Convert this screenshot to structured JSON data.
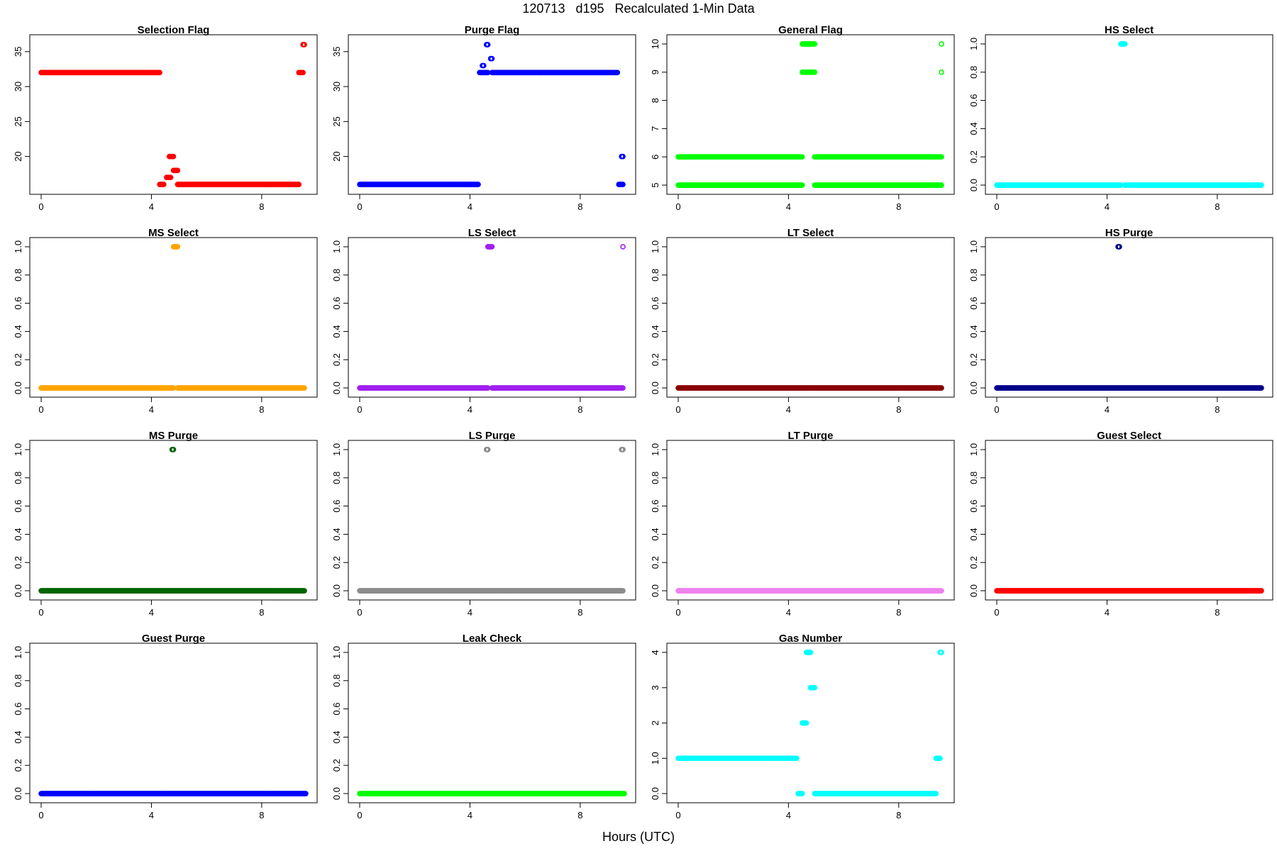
{
  "page": {
    "title": "120713   d195   Recalculated 1-Min Data",
    "xlabel": "Hours (UTC)"
  },
  "chart_data": [
    {
      "type": "scatter",
      "title": "Selection Flag",
      "color": "#ff0000",
      "xlim": [
        0,
        9.6
      ],
      "ylim": [
        15.5,
        36.5
      ],
      "xticks": [
        0,
        4,
        8
      ],
      "yticks": [
        20,
        25,
        30,
        35
      ],
      "segments": [
        {
          "y": 32,
          "x": [
            0,
            4.3
          ]
        },
        {
          "y": 16,
          "x": [
            4.3,
            4.45
          ]
        },
        {
          "y": 17,
          "x": [
            4.55,
            4.7
          ]
        },
        {
          "y": 20,
          "x": [
            4.65,
            4.8
          ]
        },
        {
          "y": 18,
          "x": [
            4.8,
            4.95
          ]
        },
        {
          "y": 16,
          "x": [
            4.95,
            9.35
          ]
        },
        {
          "y": 32,
          "x": [
            9.35,
            9.5
          ]
        },
        {
          "y": 36,
          "x": [
            9.5,
            9.55
          ]
        }
      ]
    },
    {
      "type": "scatter",
      "title": "Purge Flag",
      "color": "#0000ff",
      "xlim": [
        0,
        9.6
      ],
      "ylim": [
        15.5,
        36.5
      ],
      "xticks": [
        0,
        4,
        8
      ],
      "yticks": [
        20,
        25,
        30,
        35
      ],
      "segments": [
        {
          "y": 16,
          "x": [
            0,
            4.3
          ]
        },
        {
          "y": 32,
          "x": [
            4.35,
            4.65
          ]
        },
        {
          "y": 33,
          "x": [
            4.45,
            4.5
          ]
        },
        {
          "y": 36,
          "x": [
            4.6,
            4.65
          ]
        },
        {
          "y": 34,
          "x": [
            4.75,
            4.8
          ]
        },
        {
          "y": 32,
          "x": [
            4.8,
            9.35
          ]
        },
        {
          "y": 16,
          "x": [
            9.4,
            9.55
          ]
        },
        {
          "y": 20,
          "x": [
            9.5,
            9.55
          ]
        }
      ]
    },
    {
      "type": "scatter",
      "title": "General Flag",
      "color": "#00ff00",
      "xlim": [
        0,
        9.6
      ],
      "ylim": [
        4.9,
        10.1
      ],
      "xticks": [
        0,
        4,
        8
      ],
      "yticks": [
        5,
        6,
        7,
        8,
        9,
        10
      ],
      "segments": [
        {
          "y": 5,
          "x": [
            0,
            4.5
          ]
        },
        {
          "y": 6,
          "x": [
            0,
            4.5
          ]
        },
        {
          "y": 9,
          "x": [
            4.5,
            4.95
          ]
        },
        {
          "y": 10,
          "x": [
            4.5,
            4.95
          ]
        },
        {
          "y": 5,
          "x": [
            4.95,
            9.55
          ]
        },
        {
          "y": 6,
          "x": [
            4.95,
            9.55
          ]
        },
        {
          "y": 9,
          "x": [
            9.55,
            9.55
          ]
        },
        {
          "y": 10,
          "x": [
            9.55,
            9.55
          ]
        }
      ]
    },
    {
      "type": "scatter",
      "title": "HS Select",
      "color": "#00ffff",
      "xlim": [
        0,
        9.6
      ],
      "ylim": [
        -0.02,
        1.02
      ],
      "xticks": [
        0,
        4,
        8
      ],
      "yticks": [
        0,
        0.2,
        0.4,
        0.6,
        0.8,
        1
      ],
      "segments": [
        {
          "y": 0,
          "x": [
            0,
            4.5
          ]
        },
        {
          "y": 1,
          "x": [
            4.5,
            4.65
          ]
        },
        {
          "y": 0,
          "x": [
            4.65,
            9.6
          ]
        }
      ]
    },
    {
      "type": "scatter",
      "title": "MS Select",
      "color": "#ffa500",
      "xlim": [
        0,
        9.6
      ],
      "ylim": [
        -0.02,
        1.02
      ],
      "xticks": [
        0,
        4,
        8
      ],
      "yticks": [
        0,
        0.2,
        0.4,
        0.6,
        0.8,
        1
      ],
      "segments": [
        {
          "y": 0,
          "x": [
            0,
            4.8
          ]
        },
        {
          "y": 1,
          "x": [
            4.8,
            4.95
          ]
        },
        {
          "y": 0,
          "x": [
            4.95,
            9.55
          ]
        }
      ]
    },
    {
      "type": "scatter",
      "title": "LS Select",
      "color": "#a020f0",
      "xlim": [
        0,
        9.6
      ],
      "ylim": [
        -0.02,
        1.02
      ],
      "xticks": [
        0,
        4,
        8
      ],
      "yticks": [
        0,
        0.2,
        0.4,
        0.6,
        0.8,
        1
      ],
      "segments": [
        {
          "y": 0,
          "x": [
            0,
            4.65
          ]
        },
        {
          "y": 1,
          "x": [
            4.65,
            4.8
          ]
        },
        {
          "y": 0,
          "x": [
            4.8,
            9.55
          ]
        },
        {
          "y": 1,
          "x": [
            9.55,
            9.55
          ]
        }
      ]
    },
    {
      "type": "scatter",
      "title": "LT Select",
      "color": "#8b0000",
      "xlim": [
        0,
        9.6
      ],
      "ylim": [
        -0.02,
        1.02
      ],
      "xticks": [
        0,
        4,
        8
      ],
      "yticks": [
        0,
        0.2,
        0.4,
        0.6,
        0.8,
        1
      ],
      "segments": [
        {
          "y": 0,
          "x": [
            0,
            9.55
          ]
        }
      ]
    },
    {
      "type": "scatter",
      "title": "HS Purge",
      "color": "#00008b",
      "xlim": [
        0,
        9.6
      ],
      "ylim": [
        -0.02,
        1.02
      ],
      "xticks": [
        0,
        4,
        8
      ],
      "yticks": [
        0,
        0.2,
        0.4,
        0.6,
        0.8,
        1
      ],
      "segments": [
        {
          "y": 0,
          "x": [
            0,
            9.6
          ]
        },
        {
          "y": 1,
          "x": [
            4.4,
            4.45
          ]
        }
      ]
    },
    {
      "type": "scatter",
      "title": "MS Purge",
      "color": "#006400",
      "xlim": [
        0,
        9.6
      ],
      "ylim": [
        -0.02,
        1.02
      ],
      "xticks": [
        0,
        4,
        8
      ],
      "yticks": [
        0,
        0.2,
        0.4,
        0.6,
        0.8,
        1
      ],
      "segments": [
        {
          "y": 0,
          "x": [
            0,
            9.55
          ]
        },
        {
          "y": 1,
          "x": [
            4.75,
            4.8
          ]
        }
      ]
    },
    {
      "type": "scatter",
      "title": "LS Purge",
      "color": "#8c8c8c",
      "xlim": [
        0,
        9.6
      ],
      "ylim": [
        -0.02,
        1.02
      ],
      "xticks": [
        0,
        4,
        8
      ],
      "yticks": [
        0,
        0.2,
        0.4,
        0.6,
        0.8,
        1
      ],
      "segments": [
        {
          "y": 0,
          "x": [
            0,
            9.55
          ]
        },
        {
          "y": 1,
          "x": [
            4.6,
            4.65
          ]
        },
        {
          "y": 1,
          "x": [
            9.5,
            9.55
          ]
        }
      ]
    },
    {
      "type": "scatter",
      "title": "LT Purge",
      "color": "#ee82ee",
      "xlim": [
        0,
        9.6
      ],
      "ylim": [
        -0.02,
        1.02
      ],
      "xticks": [
        0,
        4,
        8
      ],
      "yticks": [
        0,
        0.2,
        0.4,
        0.6,
        0.8,
        1
      ],
      "segments": [
        {
          "y": 0,
          "x": [
            0,
            9.55
          ]
        }
      ]
    },
    {
      "type": "scatter",
      "title": "Guest Select",
      "color": "#ff0000",
      "xlim": [
        0,
        9.6
      ],
      "ylim": [
        -0.02,
        1.02
      ],
      "xticks": [
        0,
        4,
        8
      ],
      "yticks": [
        0,
        0.2,
        0.4,
        0.6,
        0.8,
        1
      ],
      "segments": [
        {
          "y": 0,
          "x": [
            0,
            9.6
          ]
        }
      ]
    },
    {
      "type": "scatter",
      "title": "Guest Purge",
      "color": "#0000ff",
      "xlim": [
        0,
        9.6
      ],
      "ylim": [
        -0.02,
        1.02
      ],
      "xticks": [
        0,
        4,
        8
      ],
      "yticks": [
        0,
        0.2,
        0.4,
        0.6,
        0.8,
        1
      ],
      "segments": [
        {
          "y": 0,
          "x": [
            0,
            9.6
          ]
        }
      ]
    },
    {
      "type": "scatter",
      "title": "Leak Check",
      "color": "#00ff00",
      "xlim": [
        0,
        9.6
      ],
      "ylim": [
        -0.02,
        1.02
      ],
      "xticks": [
        0,
        4,
        8
      ],
      "yticks": [
        0,
        0.2,
        0.4,
        0.6,
        0.8,
        1
      ],
      "segments": [
        {
          "y": 0,
          "x": [
            0,
            9.6
          ]
        }
      ]
    },
    {
      "type": "scatter",
      "title": "Gas Number",
      "color": "#00ffff",
      "xlim": [
        0,
        9.6
      ],
      "ylim": [
        -0.08,
        4.08
      ],
      "xticks": [
        0,
        4,
        8
      ],
      "yticks": [
        0,
        1,
        2,
        3,
        4
      ],
      "segments": [
        {
          "y": 1,
          "x": [
            0,
            4.3
          ]
        },
        {
          "y": 0,
          "x": [
            4.35,
            4.5
          ]
        },
        {
          "y": 2,
          "x": [
            4.5,
            4.65
          ]
        },
        {
          "y": 4,
          "x": [
            4.65,
            4.8
          ]
        },
        {
          "y": 3,
          "x": [
            4.8,
            4.95
          ]
        },
        {
          "y": 0,
          "x": [
            4.95,
            9.35
          ]
        },
        {
          "y": 1,
          "x": [
            9.35,
            9.5
          ]
        },
        {
          "y": 4,
          "x": [
            9.5,
            9.55
          ]
        }
      ]
    }
  ]
}
